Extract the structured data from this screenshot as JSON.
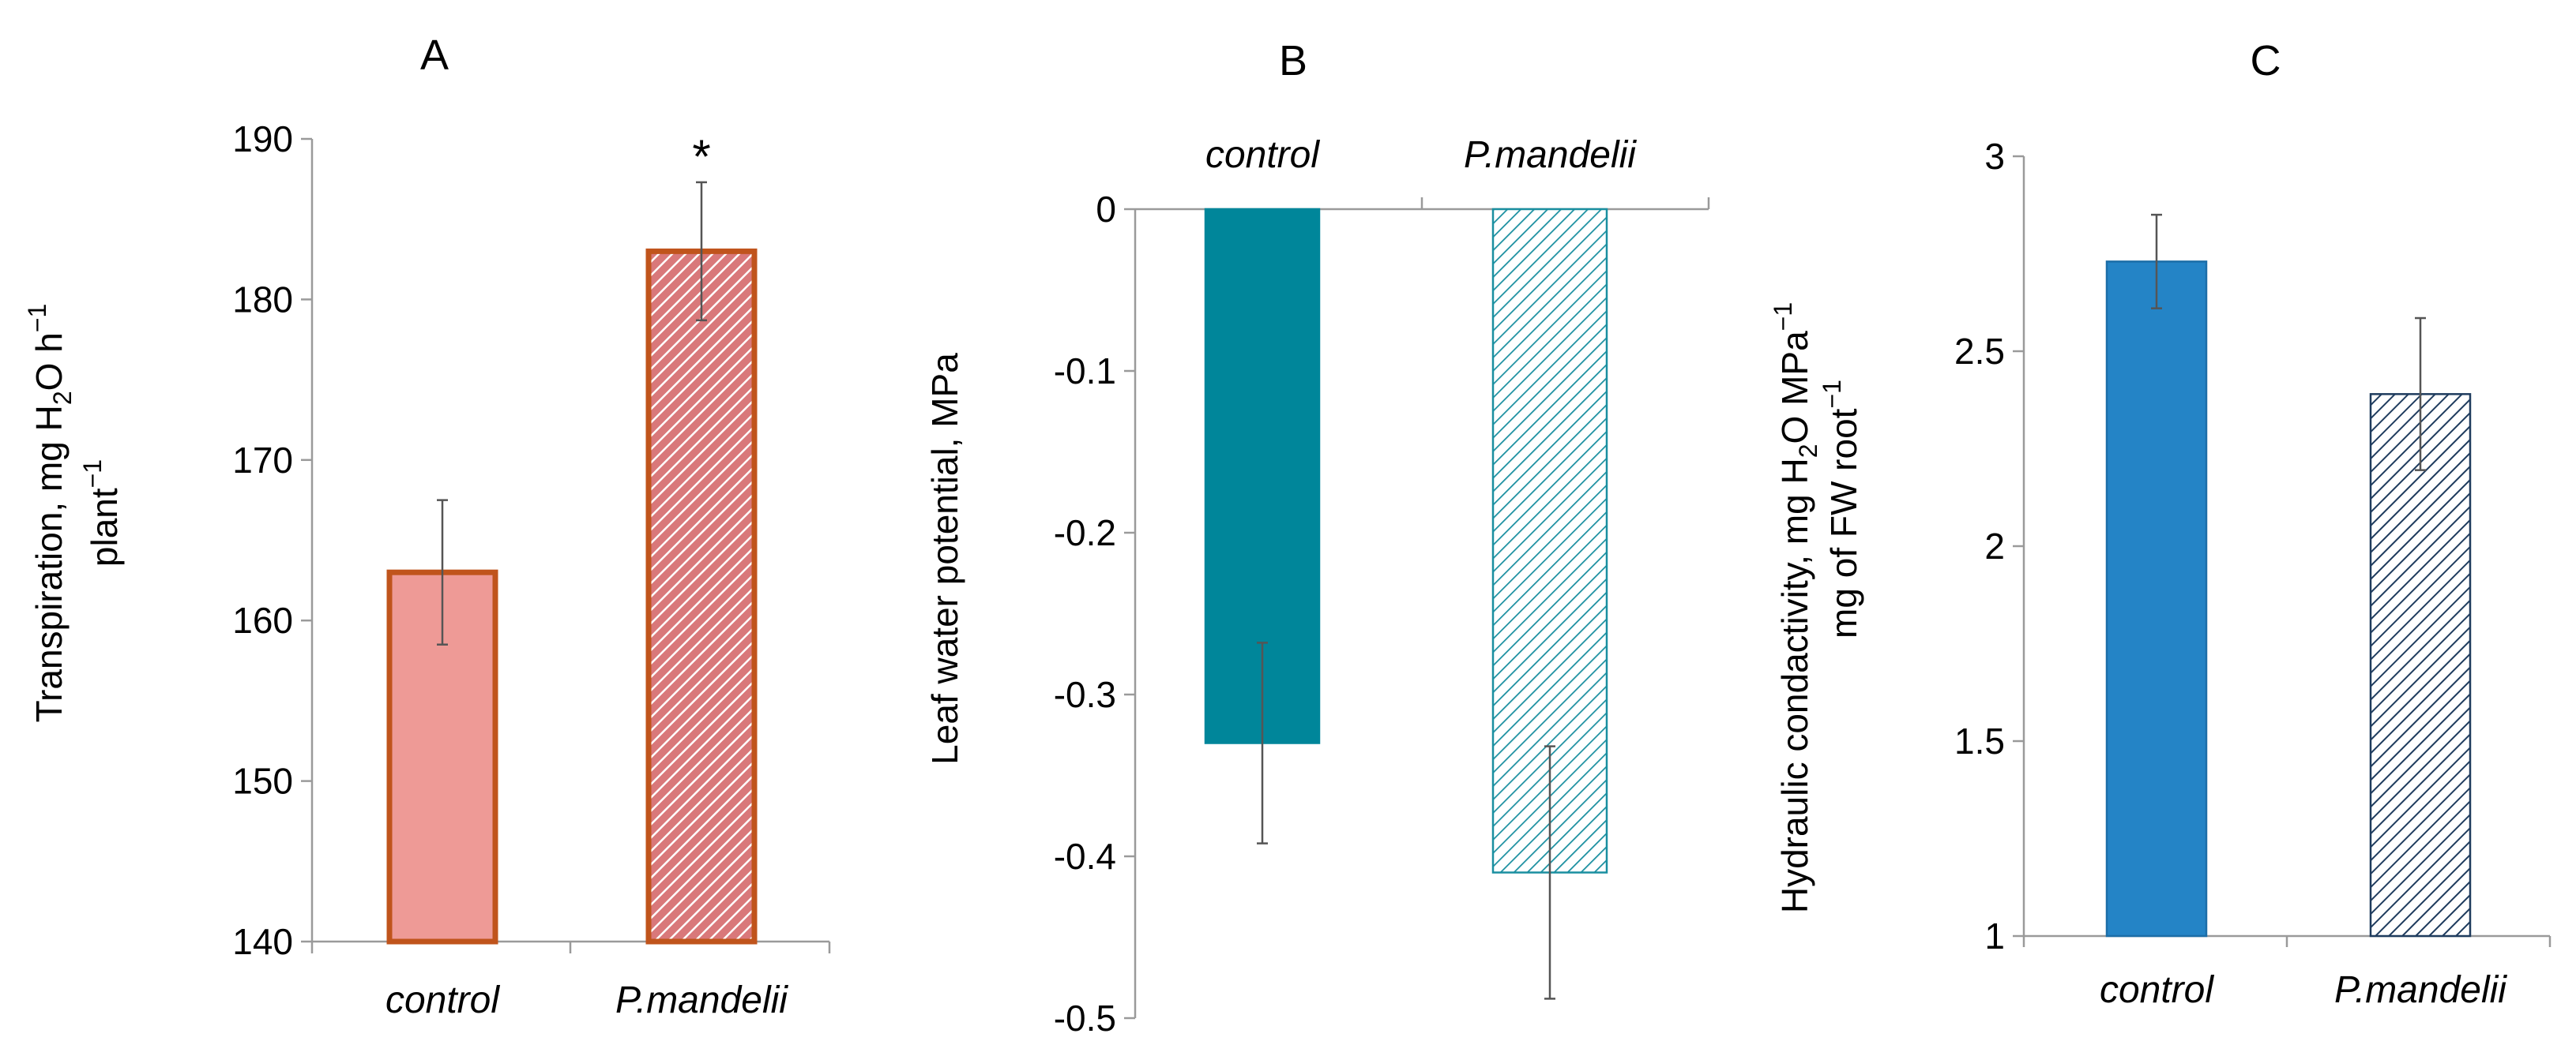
{
  "chart_data": [
    {
      "panel": "A",
      "type": "bar",
      "title": "A",
      "categories": [
        "control",
        "P.mandelii"
      ],
      "values": [
        163,
        183
      ],
      "errors": [
        4.5,
        4.3
      ],
      "significance": [
        "",
        "*"
      ],
      "ylim": [
        140,
        190
      ],
      "yticks": [
        "140",
        "150",
        "160",
        "170",
        "180",
        "190"
      ],
      "ylabel_line1": {
        "a": "Transpiration, mg H",
        "sub": "2",
        "b": "O h",
        "sup": "−1"
      },
      "ylabel_line2": {
        "a": "plant",
        "sup": "−1"
      },
      "colors": {
        "control_fill": "#ee9a96",
        "treated_fill": "#d9787a",
        "hatch_line": "#ffffff",
        "edge": "#c0541c"
      }
    },
    {
      "panel": "B",
      "type": "bar",
      "title": "B",
      "categories": [
        "control",
        "P.mandelii"
      ],
      "values": [
        -0.33,
        -0.41
      ],
      "errors": [
        0.062,
        0.078
      ],
      "ylim": [
        -0.5,
        0
      ],
      "yticks": [
        "0",
        "-0.1",
        "-0.2",
        "-0.3",
        "-0.4",
        "-0.5"
      ],
      "category_axis": "top",
      "ylabel": "Leaf water potential, MPa",
      "colors": {
        "control_fill": "#00869a",
        "hatch_line": "#1a8fa0",
        "edge": "#1a8fa0"
      }
    },
    {
      "panel": "C",
      "type": "bar",
      "title": "C",
      "categories": [
        "control",
        "P.mandelii"
      ],
      "values": [
        2.73,
        2.39
      ],
      "errors": [
        0.12,
        0.195
      ],
      "ylim": [
        1,
        3
      ],
      "yticks": [
        "1",
        "1.5",
        "2",
        "2.5",
        "3"
      ],
      "ylabel_line1": {
        "a": "Hydraulic condactivity, mg H",
        "sub": "2",
        "b": "O MPa",
        "sup": "−1"
      },
      "ylabel_line2": {
        "a": "mg of FW root",
        "sup": "−1"
      },
      "colors": {
        "control_fill": "#2484c6",
        "hatch_line": "#1f3c5e",
        "edge": "#1f3c5e"
      }
    }
  ]
}
